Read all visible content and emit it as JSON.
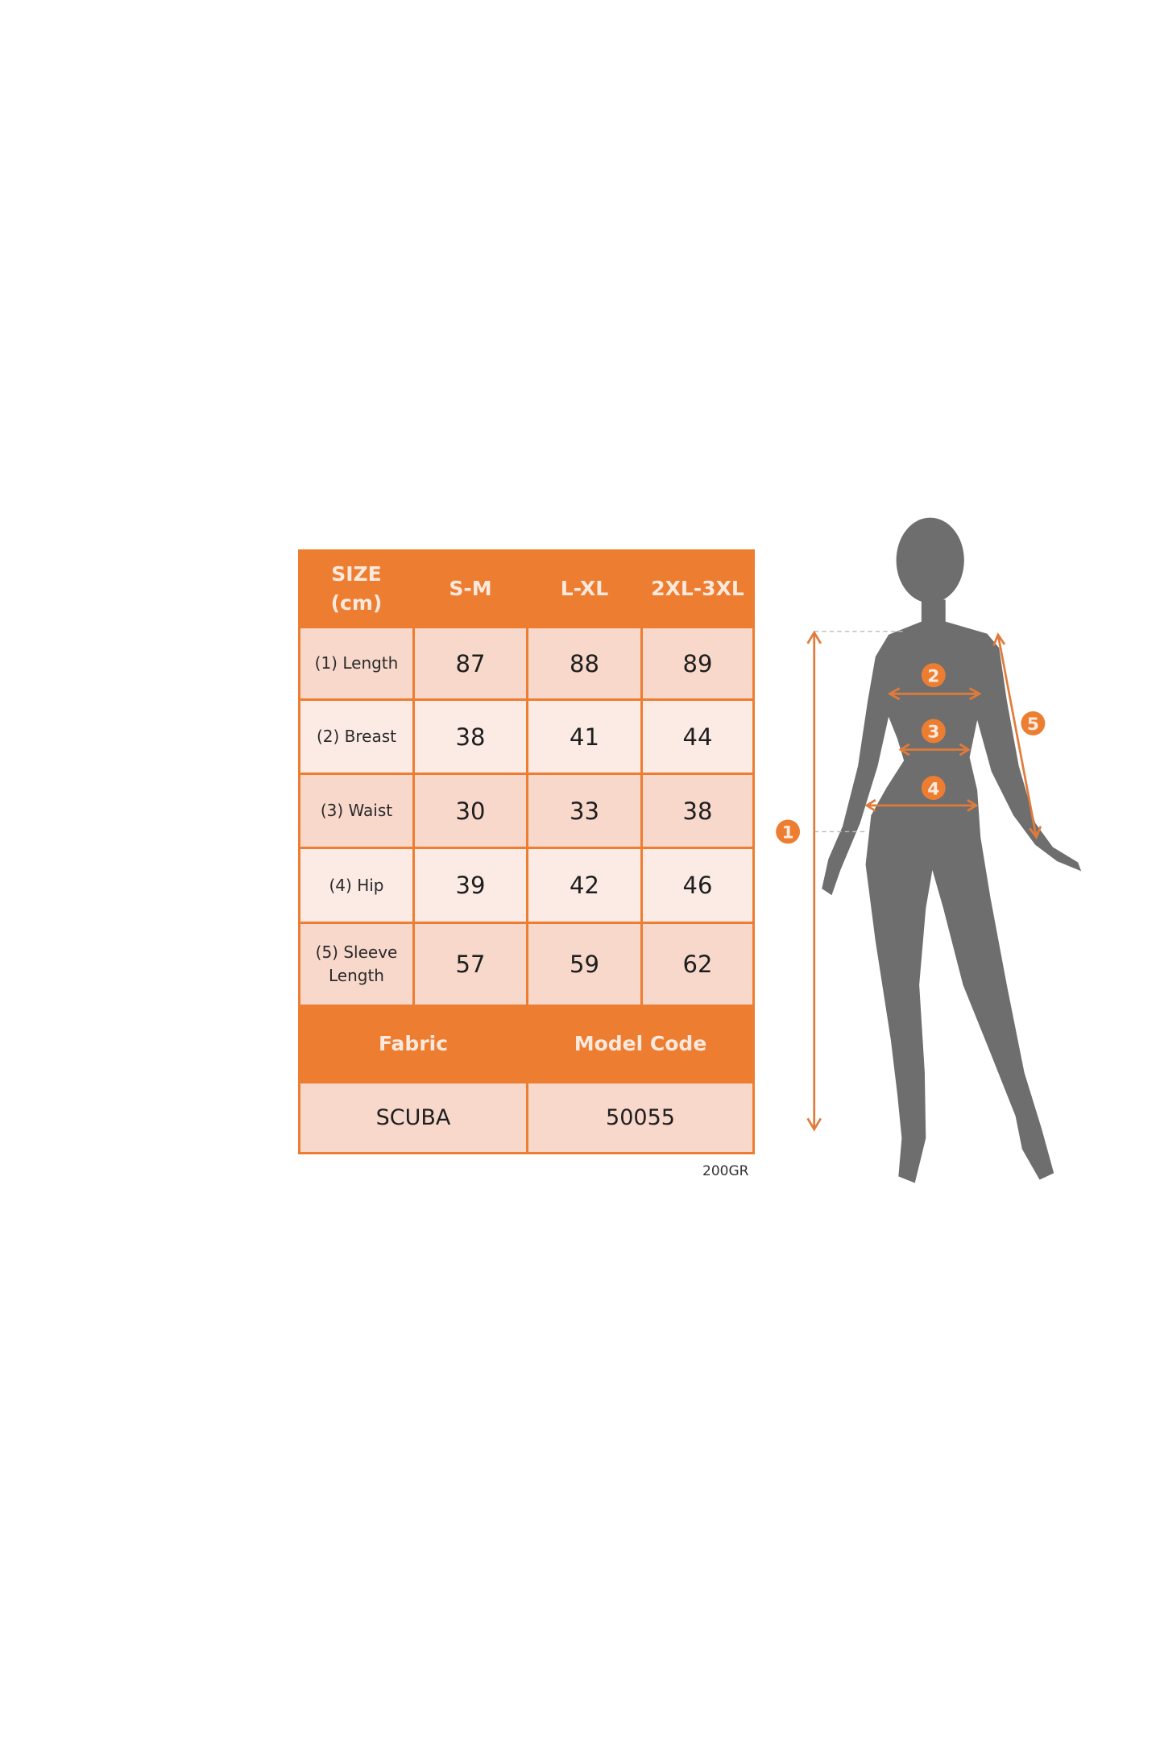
{
  "table": {
    "header": [
      "SIZE\n(cm)",
      "S-M",
      "L-XL",
      "2XL-3XL"
    ],
    "rows": [
      {
        "label": "(1) Length",
        "values": [
          "87",
          "88",
          "89"
        ]
      },
      {
        "label": "(2) Breast",
        "values": [
          "38",
          "41",
          "44"
        ]
      },
      {
        "label": "(3) Waist",
        "values": [
          "30",
          "33",
          "38"
        ]
      },
      {
        "label": "(4) Hip",
        "values": [
          "39",
          "42",
          "46"
        ]
      },
      {
        "label": "(5) Sleeve\nLength",
        "values": [
          "57",
          "59",
          "62"
        ]
      }
    ],
    "footer_header": [
      "Fabric",
      "Model Code"
    ],
    "footer_values": [
      "SCUBA",
      "50055"
    ]
  },
  "note": "200GR",
  "figure": {
    "markers": [
      "1",
      "2",
      "3",
      "4",
      "5"
    ],
    "accent": "#ED7D31",
    "silhouette_color": "#6E6E6E"
  }
}
